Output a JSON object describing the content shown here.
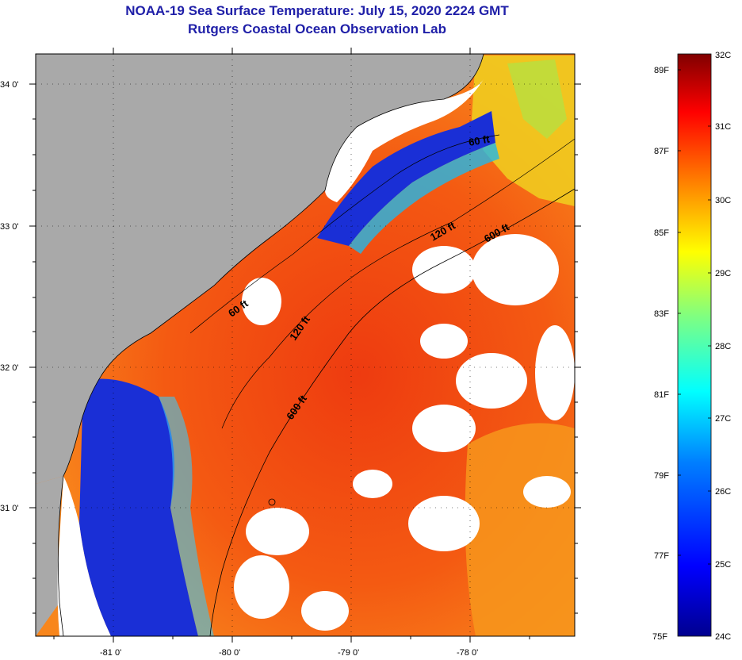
{
  "title": {
    "line1": "NOAA-19 Sea Surface Temperature:  July 15, 2020 2224 GMT",
    "line2": "Rutgers Coastal Ocean Observation Lab"
  },
  "map": {
    "longitude_labels": [
      "-81 0'",
      "-80 0'",
      "-79 0'",
      "-78 0'"
    ],
    "latitude_labels": [
      "34 0'",
      "33 0'",
      "32 0'",
      "31 0'"
    ],
    "contours": [
      {
        "label": "60 ft"
      },
      {
        "label": "120 ft"
      },
      {
        "label": "600 ft"
      },
      {
        "label": "60 ft"
      },
      {
        "label": "120 ft"
      },
      {
        "label": "600 ft"
      }
    ],
    "colors": {
      "land": "#a9a9a9",
      "cloud": "#ffffff",
      "sea_warm": "#f06414",
      "sea_cool": "#1a2fd6"
    }
  },
  "colorbar": {
    "fahrenheit_labels": [
      "89F",
      "87F",
      "85F",
      "83F",
      "81F",
      "79F",
      "77F",
      "75F"
    ],
    "celsius_labels": [
      "32C",
      "31C",
      "30C",
      "29C",
      "28C",
      "27C",
      "26C",
      "25C",
      "24C"
    ],
    "range_f": [
      75,
      89
    ],
    "range_c": [
      24,
      32
    ]
  }
}
